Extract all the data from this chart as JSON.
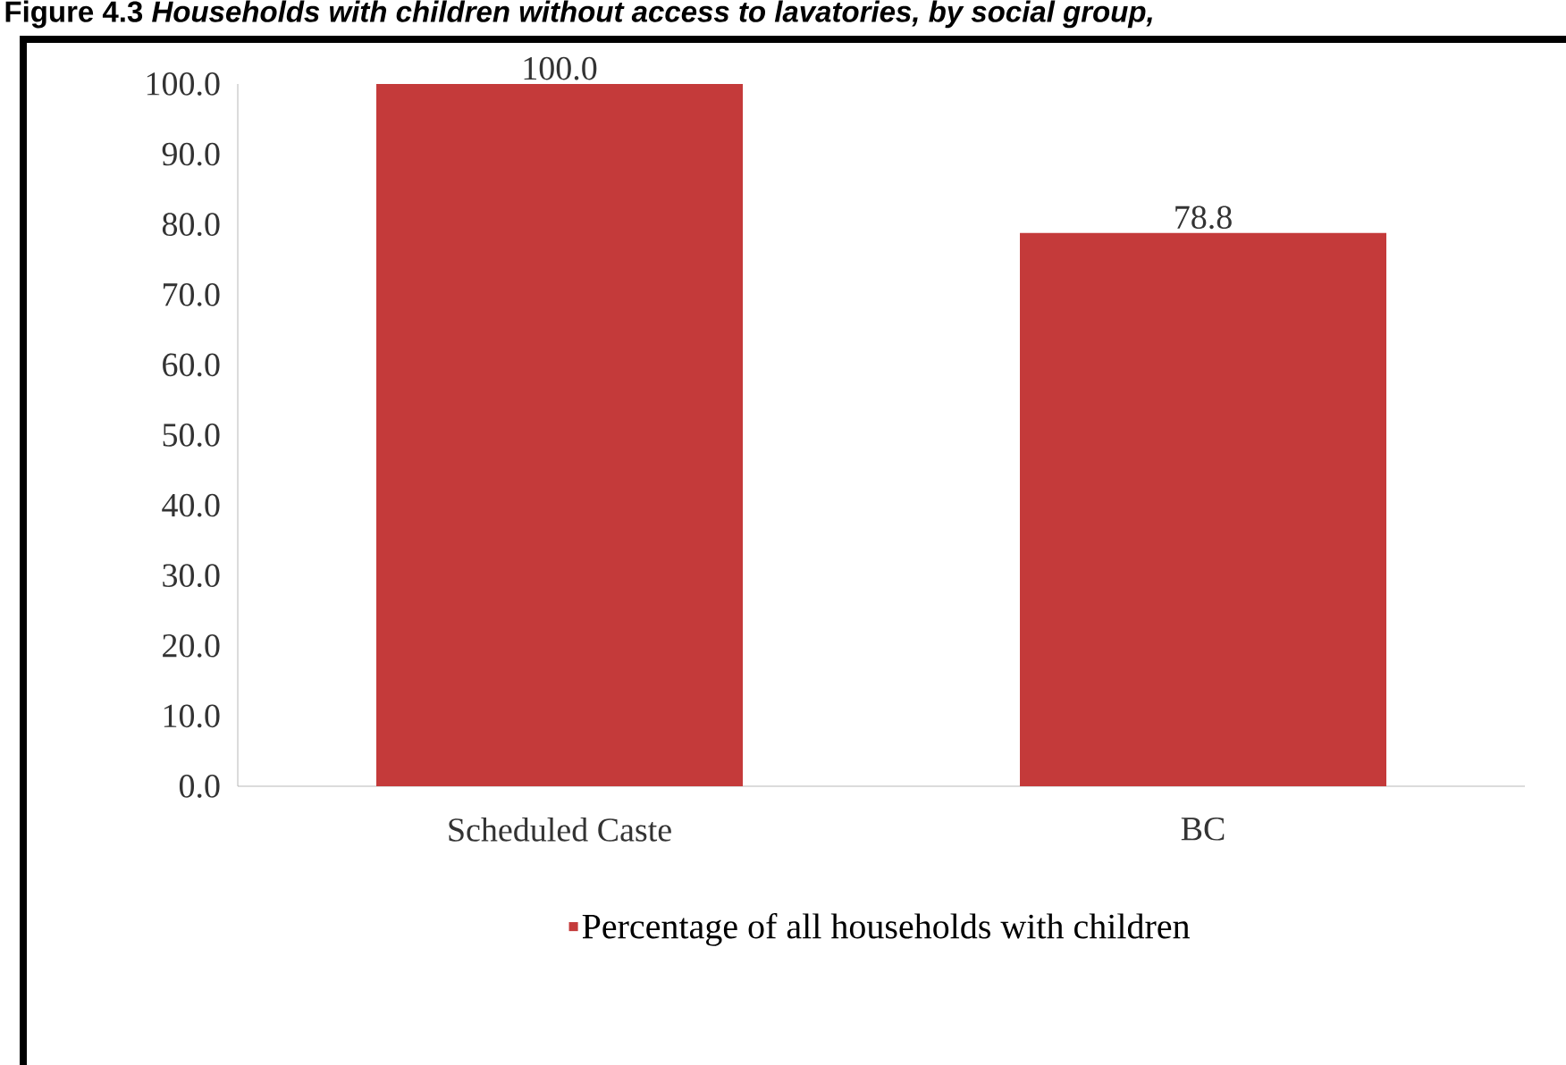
{
  "chart_data": {
    "type": "bar",
    "title": "Figure 4.3 *Households with children without access to lavatories, by social group,*",
    "categories": [
      "Scheduled Caste",
      "BC"
    ],
    "series": [
      {
        "name": "Percentage of all households with children",
        "color": "#c43a3a",
        "values": [
          100.0,
          78.8
        ],
        "value_labels": [
          "100.0",
          "78.8"
        ]
      }
    ],
    "ylim": [
      0,
      100
    ],
    "yticks": [
      {
        "value": 0,
        "label": "0.0"
      },
      {
        "value": 10,
        "label": "10.0"
      },
      {
        "value": 20,
        "label": "20.0"
      },
      {
        "value": 30,
        "label": "30.0"
      },
      {
        "value": 40,
        "label": "40.0"
      },
      {
        "value": 50,
        "label": "50.0"
      },
      {
        "value": 60,
        "label": "60.0"
      },
      {
        "value": 70,
        "label": "70.0"
      },
      {
        "value": 80,
        "label": "80.0"
      },
      {
        "value": 90,
        "label": "90.0"
      },
      {
        "value": 100,
        "label": "100.0"
      }
    ],
    "grid": false,
    "legend": "bottom"
  }
}
